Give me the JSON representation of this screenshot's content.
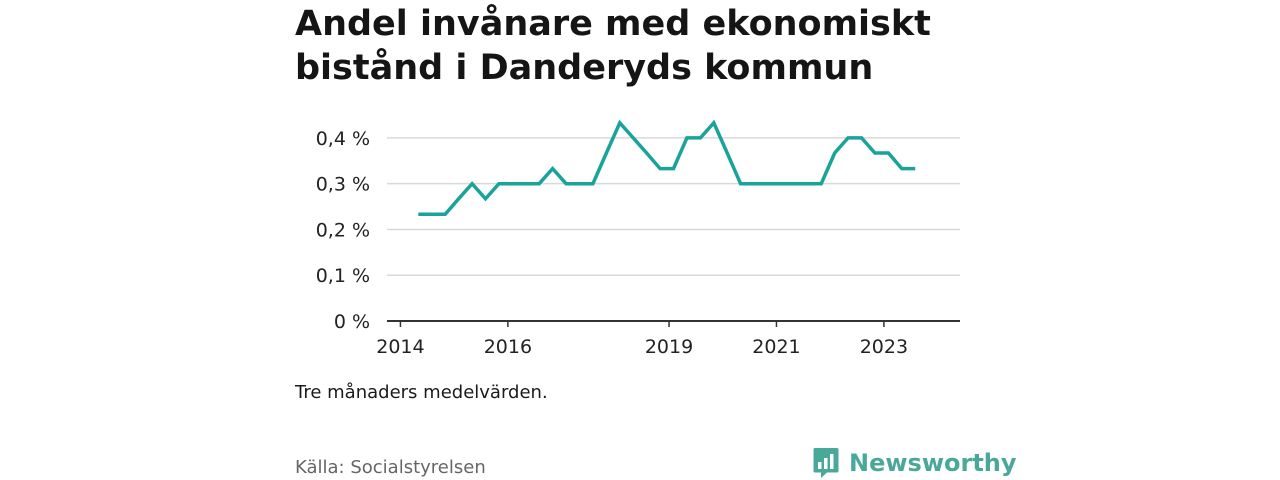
{
  "title": "Andel invånare med ekonomiskt bistånd i Danderyds kommun",
  "note": "Tre månaders medelvärden.",
  "source": "Källa: Socialstyrelsen",
  "brand": {
    "name": "Newsworthy",
    "icon": "newsworthy-logo-icon",
    "color": "#4aa89a"
  },
  "chart_data": {
    "type": "line",
    "line_color": "#1aa39a",
    "ylim": [
      0,
      0.45
    ],
    "yticks": [
      {
        "value": 0,
        "label": "0 %"
      },
      {
        "value": 0.1,
        "label": "0,1 %"
      },
      {
        "value": 0.2,
        "label": "0,2 %"
      },
      {
        "value": 0.3,
        "label": "0,3 %"
      },
      {
        "value": 0.4,
        "label": "0,4 %"
      }
    ],
    "xlim": [
      "2013-10",
      "2024-06"
    ],
    "xticks": [
      {
        "date": "2014-01",
        "label": "2014"
      },
      {
        "date": "2016-01",
        "label": "2016"
      },
      {
        "date": "2019-01",
        "label": "2019"
      },
      {
        "date": "2021-01",
        "label": "2021"
      },
      {
        "date": "2023-01",
        "label": "2023"
      }
    ],
    "grid": true,
    "series": [
      {
        "points": [
          {
            "x": "2014-05",
            "y": 0.233
          },
          {
            "x": "2014-08",
            "y": 0.233
          },
          {
            "x": "2014-11",
            "y": 0.233
          },
          {
            "x": "2015-02",
            "y": 0.267
          },
          {
            "x": "2015-05",
            "y": 0.3
          },
          {
            "x": "2015-08",
            "y": 0.267
          },
          {
            "x": "2015-11",
            "y": 0.3
          },
          {
            "x": "2016-02",
            "y": 0.3
          },
          {
            "x": "2016-05",
            "y": 0.3
          },
          {
            "x": "2016-08",
            "y": 0.3
          },
          {
            "x": "2016-11",
            "y": 0.333
          },
          {
            "x": "2017-02",
            "y": 0.3
          },
          {
            "x": "2017-05",
            "y": 0.3
          },
          {
            "x": "2017-08",
            "y": 0.3
          },
          {
            "x": "2017-11",
            "y": 0.367
          },
          {
            "x": "2018-02",
            "y": 0.433
          },
          {
            "x": "2018-05",
            "y": 0.4
          },
          {
            "x": "2018-08",
            "y": 0.367
          },
          {
            "x": "2018-11",
            "y": 0.333
          },
          {
            "x": "2019-02",
            "y": 0.333
          },
          {
            "x": "2019-05",
            "y": 0.4
          },
          {
            "x": "2019-08",
            "y": 0.4
          },
          {
            "x": "2019-11",
            "y": 0.433
          },
          {
            "x": "2020-02",
            "y": 0.367
          },
          {
            "x": "2020-05",
            "y": 0.3
          },
          {
            "x": "2020-08",
            "y": 0.3
          },
          {
            "x": "2020-11",
            "y": 0.3
          },
          {
            "x": "2021-02",
            "y": 0.3
          },
          {
            "x": "2021-05",
            "y": 0.3
          },
          {
            "x": "2021-08",
            "y": 0.3
          },
          {
            "x": "2021-11",
            "y": 0.3
          },
          {
            "x": "2022-02",
            "y": 0.367
          },
          {
            "x": "2022-05",
            "y": 0.4
          },
          {
            "x": "2022-08",
            "y": 0.4
          },
          {
            "x": "2022-11",
            "y": 0.367
          },
          {
            "x": "2023-02",
            "y": 0.367
          },
          {
            "x": "2023-05",
            "y": 0.333
          },
          {
            "x": "2023-08",
            "y": 0.333
          }
        ]
      }
    ]
  }
}
